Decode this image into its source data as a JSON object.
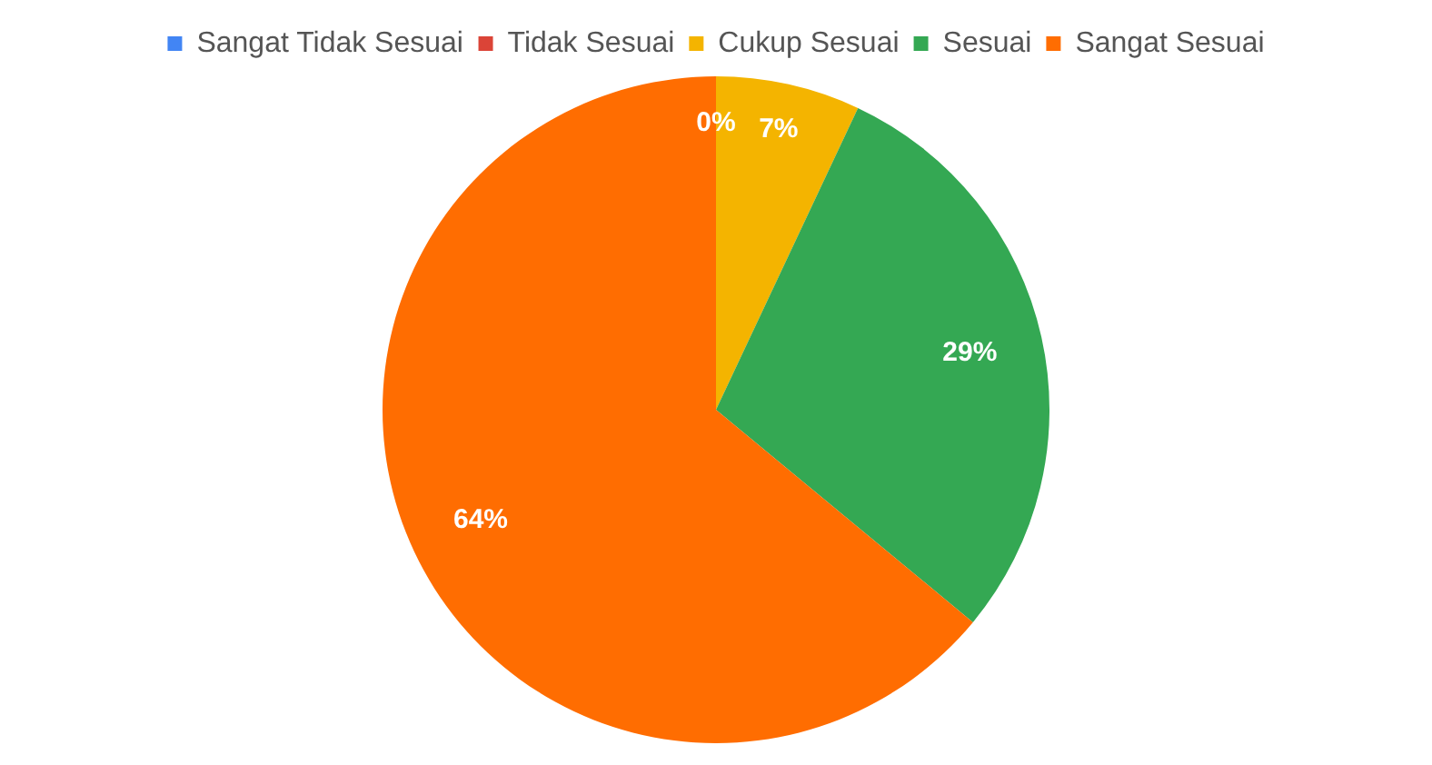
{
  "chart_data": {
    "type": "pie",
    "categories": [
      "Sangat Tidak Sesuai",
      "Tidak Sesuai",
      "Cukup Sesuai",
      "Sesuai",
      "Sangat Sesuai"
    ],
    "values": [
      0,
      0,
      7,
      29,
      64
    ],
    "colors": [
      "#4285f4",
      "#db4437",
      "#f4b400",
      "#34a853",
      "#ff6d01"
    ],
    "value_labels": [
      "0%",
      null,
      "7%",
      "29%",
      "64%"
    ],
    "legend": "top"
  }
}
